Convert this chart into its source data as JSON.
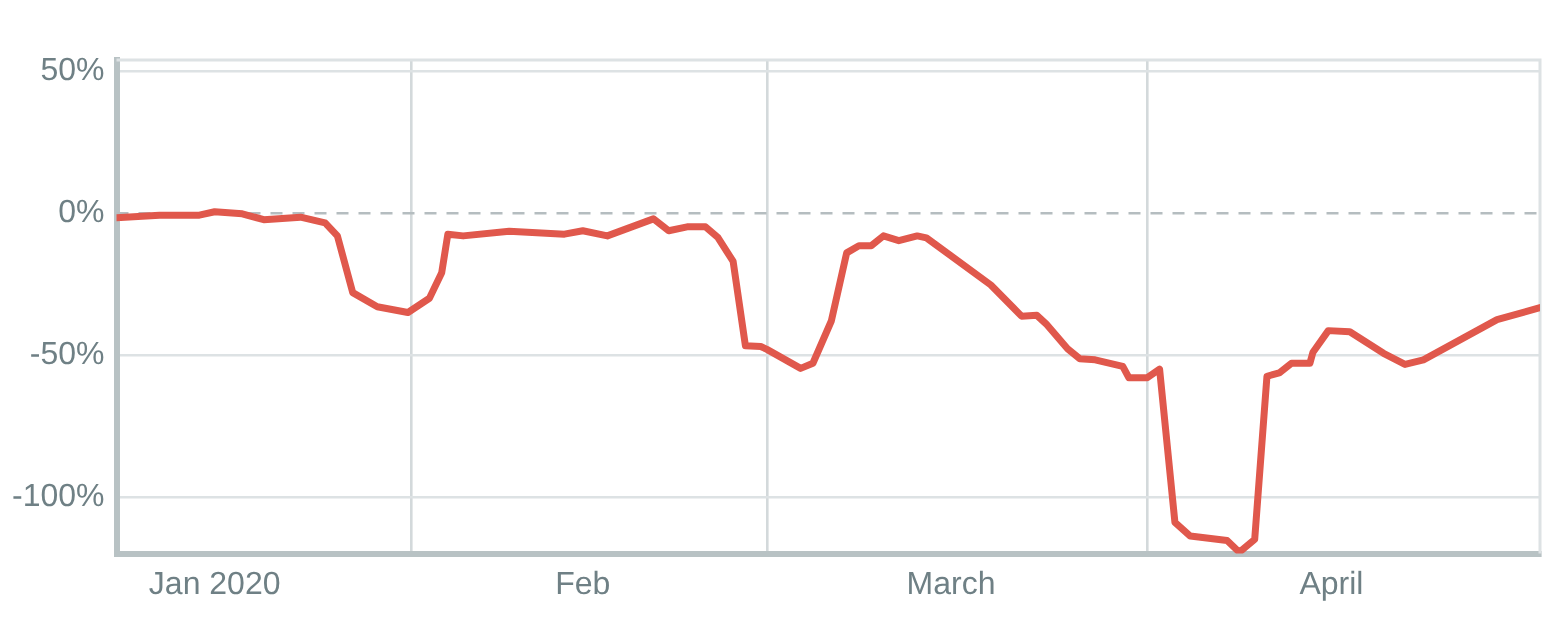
{
  "chart_data": {
    "type": "line",
    "x": [
      "2020-01-08T00:00",
      "2020-01-11T12:00",
      "2020-01-14T18:00",
      "2020-01-16T00:00",
      "2020-01-18T06:00",
      "2020-01-20T00:00",
      "2020-01-23T00:00",
      "2020-01-25T00:00",
      "2020-01-26T00:00",
      "2020-01-27T06:00",
      "2020-01-29T06:00",
      "2020-01-31T18:00",
      "2020-02-02T12:00",
      "2020-02-03T12:00",
      "2020-02-04T00:00",
      "2020-02-05T06:00",
      "2020-02-09T00:00",
      "2020-02-13T12:00",
      "2020-02-15T00:00",
      "2020-02-17T00:00",
      "2020-02-20T18:00",
      "2020-02-22T00:00",
      "2020-02-23T12:00",
      "2020-02-25T00:00",
      "2020-02-26T00:00",
      "2020-02-27T06:00",
      "2020-02-28T06:00",
      "2020-02-29T12:00",
      "2020-03-01T00:00",
      "2020-03-03T18:00",
      "2020-03-04T18:00",
      "2020-03-06T06:00",
      "2020-03-07T12:00",
      "2020-03-08T12:00",
      "2020-03-09T12:00",
      "2020-03-10T12:00",
      "2020-03-11T18:00",
      "2020-03-13T06:00",
      "2020-03-14T00:00",
      "2020-03-19T06:00",
      "2020-03-21T18:00",
      "2020-03-23T00:00",
      "2020-03-23T18:00",
      "2020-03-25T12:00",
      "2020-03-26T12:00",
      "2020-03-27T18:00",
      "2020-03-30T00:00",
      "2020-03-30T12:00",
      "2020-04-01T00:00",
      "2020-04-02T00:00",
      "2020-04-03T06:00",
      "2020-04-04T12:00",
      "2020-04-07T12:00",
      "2020-04-08T12:00",
      "2020-04-09T18:00",
      "2020-04-10T18:00",
      "2020-04-11T18:00",
      "2020-04-12T18:00",
      "2020-04-14T06:00",
      "2020-04-14T12:00",
      "2020-04-15T18:00",
      "2020-04-17T12:00",
      "2020-04-20T06:00",
      "2020-04-22T00:00",
      "2020-04-23T12:00",
      "2020-04-29T12:00",
      "2020-05-03T00:00"
    ],
    "series": [
      {
        "color": "#e0584c",
        "values": [
          -1.6,
          -0.7,
          -0.7,
          0.5,
          -0.2,
          -2.3,
          -1.4,
          -3.4,
          -8,
          -28,
          -33,
          -35,
          -30,
          -21,
          -7.4,
          -8,
          -6.4,
          -7.4,
          -6.2,
          -8,
          -2,
          -6.2,
          -4.8,
          -4.8,
          -8.5,
          -17,
          -46.7,
          -47,
          -48,
          -54.7,
          -52.9,
          -38,
          -14,
          -11.5,
          -11.5,
          -8,
          -9.7,
          -8,
          -8.7,
          -25.3,
          -36.3,
          -36,
          -39,
          -47.8,
          -51.3,
          -51.7,
          -54,
          -58,
          -58,
          -55,
          -109,
          -113.8,
          -115.4,
          -119.5,
          -115,
          -57.5,
          -56.3,
          -52.9,
          -52.9,
          -49,
          -41.4,
          -41.8,
          -49.4,
          -53.3,
          -51.7,
          -37.5,
          -33.3
        ]
      }
    ],
    "xlim": [
      "2020-01-08",
      "2020-05-03"
    ],
    "xticks": [
      {
        "value": "2020-01-16",
        "label": "Jan 2020"
      },
      {
        "value": "2020-02-01",
        "label": null
      },
      {
        "value": "2020-02-15",
        "label": "Feb"
      },
      {
        "value": "2020-03-01",
        "label": null
      },
      {
        "value": "2020-03-16",
        "label": "March"
      },
      {
        "value": "2020-04-01",
        "label": null
      },
      {
        "value": "2020-04-16",
        "label": "April"
      }
    ],
    "ylim": [
      -120,
      54
    ],
    "yticks": [
      {
        "value": 50,
        "label": "50%"
      },
      {
        "value": 0,
        "label": "0%"
      },
      {
        "value": -50,
        "label": "-50%"
      },
      {
        "value": -100,
        "label": "-100%"
      }
    ],
    "ref_lines": [
      {
        "axis": "y",
        "value": 0,
        "label": null,
        "color": "#b5bdc0",
        "line_style": "dashed"
      }
    ],
    "grid": true,
    "legend": false,
    "marker": "none",
    "line_style": "solid"
  }
}
